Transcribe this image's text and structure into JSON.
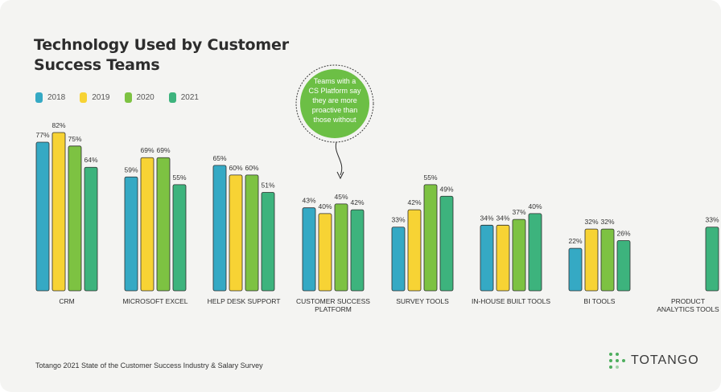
{
  "chart_data": {
    "type": "bar",
    "title": "Technology Used by Customer Success Teams",
    "categories": [
      "CRM",
      "MICROSOFT EXCEL",
      "HELP DESK SUPPORT",
      "CUSTOMER SUCCESS PLATFORM",
      "SURVEY TOOLS",
      "IN-HOUSE BUILT TOOLS",
      "BI TOOLS",
      "PRODUCT ANALYTICS TOOLS"
    ],
    "series": [
      {
        "name": "2018",
        "color": "#35a9c4",
        "values": [
          77,
          59,
          65,
          43,
          33,
          34,
          22,
          null
        ]
      },
      {
        "name": "2019",
        "color": "#f7d334",
        "values": [
          82,
          69,
          60,
          40,
          42,
          34,
          32,
          null
        ]
      },
      {
        "name": "2020",
        "color": "#7dc242",
        "values": [
          75,
          69,
          60,
          45,
          55,
          37,
          32,
          null
        ]
      },
      {
        "name": "2021",
        "color": "#3db37d",
        "values": [
          64,
          55,
          51,
          42,
          49,
          40,
          26,
          33
        ]
      }
    ],
    "value_suffix": "%",
    "ylim": [
      0,
      82
    ],
    "grid": false,
    "legend_placement": "top-left",
    "annotation": "Teams with a CS Platform say they are more proactive than those without"
  },
  "footer": {
    "source": "Totango 2021 State of the Customer Success Industry & Salary Survey",
    "logo_text": "TOTANGO"
  },
  "colors": {
    "background": "#f4f4f2",
    "callout": "#6cbf45"
  }
}
